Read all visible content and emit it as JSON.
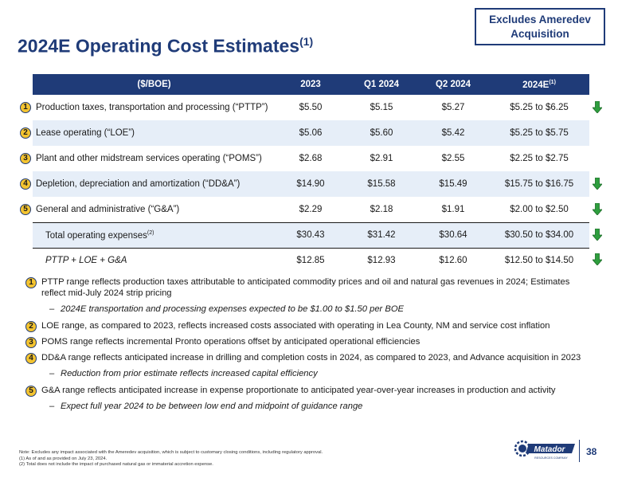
{
  "title": "2024E Operating Cost Estimates",
  "title_sup": "(1)",
  "badge": "Excludes Ameredev Acquisition",
  "table": {
    "headers": [
      "($/BOE)",
      "2023",
      "Q1 2024",
      "Q2 2024",
      "2024E"
    ],
    "header_sup": "(1)",
    "rows": [
      {
        "num": "1",
        "label": "Production taxes, transportation and processing (“PTTP”)",
        "v2023": "$5.50",
        "q1": "$5.15",
        "q2": "$5.27",
        "e2024": "$5.25 to $6.25",
        "arrow": "down"
      },
      {
        "num": "2",
        "label": "Lease operating (“LOE”)",
        "v2023": "$5.06",
        "q1": "$5.60",
        "q2": "$5.42",
        "e2024": "$5.25 to $5.75",
        "arrow": "none"
      },
      {
        "num": "3",
        "label": "Plant and other midstream services operating (“POMS”)",
        "v2023": "$2.68",
        "q1": "$2.91",
        "q2": "$2.55",
        "e2024": "$2.25 to $2.75",
        "arrow": "none"
      },
      {
        "num": "4",
        "label": "Depletion, depreciation and amortization (“DD&A”)",
        "v2023": "$14.90",
        "q1": "$15.58",
        "q2": "$15.49",
        "e2024": "$15.75 to $16.75",
        "arrow": "down"
      },
      {
        "num": "5",
        "label": "General and administrative (“G&A”)",
        "v2023": "$2.29",
        "q1": "$2.18",
        "q2": "$1.91",
        "e2024": "$2.00 to $2.50",
        "arrow": "down"
      }
    ],
    "total": {
      "label": "Total operating expenses",
      "sup": "(2)",
      "v2023": "$30.43",
      "q1": "$31.42",
      "q2": "$30.64",
      "e2024": "$30.50 to $34.00"
    },
    "subtotal": {
      "label": "PTTP + LOE + G&A",
      "v2023": "$12.85",
      "q1": "$12.93",
      "q2": "$12.60",
      "e2024": "$12.50 to $14.50"
    }
  },
  "notes": [
    {
      "num": "1",
      "text": "PTTP range reflects production taxes attributable to anticipated commodity prices and oil and natural gas revenues in 2024; Estimates reflect mid-July 2024 strip pricing",
      "sub": "2024E transportation and processing expenses expected to be $1.00 to $1.50 per BOE"
    },
    {
      "num": "2",
      "text": "LOE range, as compared to 2023, reflects increased costs associated with operating in Lea County, NM and service cost inflation",
      "sub": ""
    },
    {
      "num": "3",
      "text": "POMS range reflects incremental Pronto operations offset by anticipated operational efficiencies",
      "sub": ""
    },
    {
      "num": "4",
      "text": "DD&A range reflects anticipated increase in drilling and completion costs in 2024, as compared to 2023, and Advance acquisition in 2023",
      "sub": "Reduction from prior estimate reflects increased capital efficiency"
    },
    {
      "num": "5",
      "text": "G&A range reflects anticipated increase in expense proportionate to anticipated year-over-year increases in production and activity",
      "sub": "Expect full year 2024 to be between low end and midpoint of guidance range"
    }
  ],
  "footnotes": [
    "Note: Excludes any impact associated with the Ameredev acquisition, which is subject to customary closing conditions, including regulatory approval.",
    "(1)   As of and as provided on July 23, 2024.",
    "(2)   Total does not include the impact of purchased natural gas or immaterial accretion expense."
  ],
  "logo": {
    "name": "Matador",
    "tagline": "RESOURCES COMPANY"
  },
  "page_number": "38",
  "colors": {
    "navy": "#1f3b78",
    "shade": "#e6eef8",
    "arrow_green": "#2e9e3e",
    "circle_fill": "#f4c430"
  }
}
